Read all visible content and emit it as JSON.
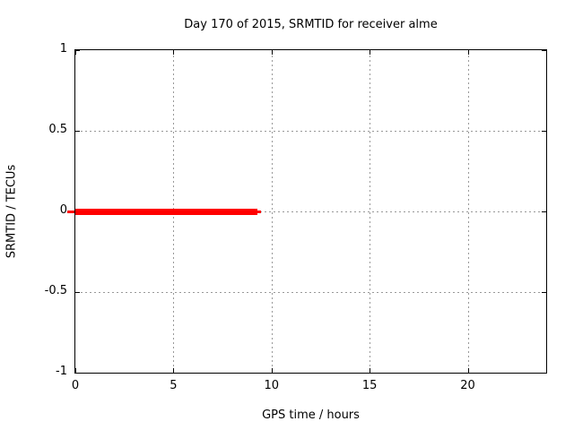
{
  "chart_data": {
    "type": "line",
    "title": "Day 170 of 2015, SRMTID for receiver alme",
    "xlabel": "GPS time / hours",
    "ylabel": "SRMTID / TECUs",
    "xlim": [
      0,
      24
    ],
    "ylim": [
      -1,
      1
    ],
    "xticks": [
      0,
      5,
      10,
      15,
      20
    ],
    "xticklabels": [
      "0",
      "5",
      "10",
      "15",
      "20"
    ],
    "yticks": [
      1,
      0.5,
      0,
      -0.5,
      -1
    ],
    "yticklabels": [
      "1",
      "0.5",
      "0",
      "-0.5",
      "-1"
    ],
    "grid": true,
    "legend": "none",
    "series": [
      {
        "name": "SRMTID",
        "color": "#ff0000",
        "style": "thick horizontal segment with thin errorbar overhang at both ends",
        "points": [
          {
            "x": 0,
            "y": 0
          },
          {
            "x": 9.3,
            "y": 0
          }
        ]
      }
    ],
    "colors": {
      "line": "#ff0000",
      "grid": "#999999",
      "border": "#000000",
      "text": "#000000",
      "background": "#ffffff"
    }
  }
}
